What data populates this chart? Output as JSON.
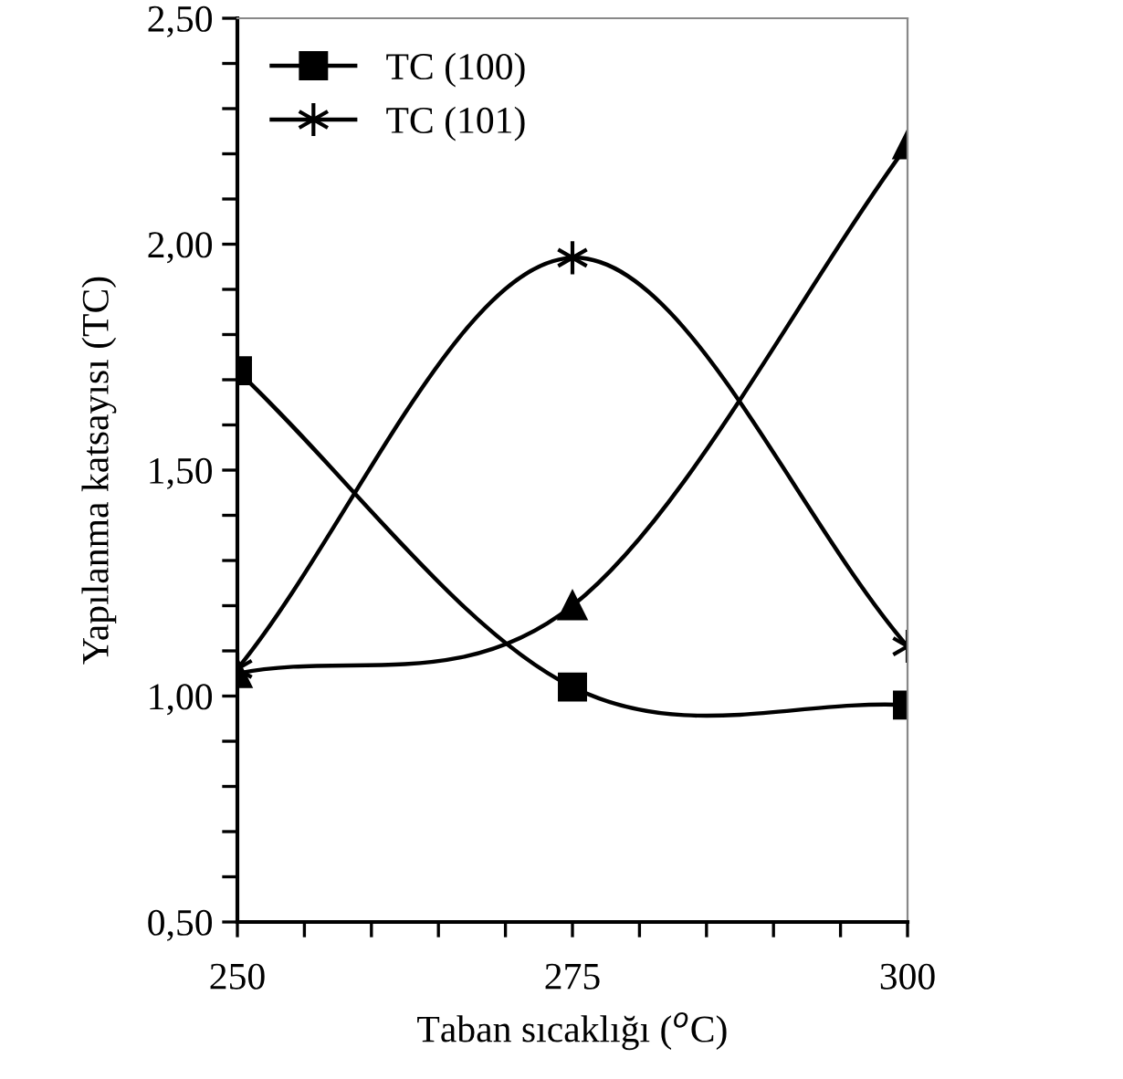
{
  "chart_data": {
    "type": "line",
    "xlabel": "Taban sıcaklığı ($^{o}$C)",
    "ylabel": "Yapılanma katsayısı (TC)",
    "x": [
      250,
      275,
      300
    ],
    "series": [
      {
        "name": "TC (100)",
        "color": "#000000",
        "marker": "square",
        "values": [
          1.72,
          1.02,
          0.98
        ]
      },
      {
        "name": "TC (101)",
        "color": "#000000",
        "marker": "cross",
        "values": [
          1.06,
          1.97,
          1.11
        ]
      },
      {
        "color": "#000000",
        "marker": "triangle",
        "values": [
          1.05,
          1.2,
          2.22
        ]
      }
    ],
    "xlim": [
      250,
      300
    ],
    "xticks": [
      250,
      {
        "value": 255,
        "label": null
      },
      {
        "value": 260,
        "label": null
      },
      {
        "value": 265,
        "label": null
      },
      {
        "value": 270,
        "label": null
      },
      275,
      {
        "value": 280,
        "label": null
      },
      {
        "value": 285,
        "label": null
      },
      {
        "value": 290,
        "label": null
      },
      {
        "value": 295,
        "label": null
      },
      300
    ],
    "ylim": [
      0.5,
      2.5
    ],
    "yticks": [
      {
        "value": 0.5,
        "label": "0,50"
      },
      {
        "value": 0.6,
        "label": null
      },
      {
        "value": 0.7,
        "label": null
      },
      {
        "value": 0.8,
        "label": null
      },
      {
        "value": 0.9,
        "label": null
      },
      {
        "value": 1.0,
        "label": "1,00"
      },
      {
        "value": 1.1,
        "label": null
      },
      {
        "value": 1.2,
        "label": null
      },
      {
        "value": 1.3,
        "label": null
      },
      {
        "value": 1.4,
        "label": null
      },
      {
        "value": 1.5,
        "label": "1,50"
      },
      {
        "value": 1.6,
        "label": null
      },
      {
        "value": 1.7,
        "label": null
      },
      {
        "value": 1.8,
        "label": null
      },
      {
        "value": 1.9,
        "label": null
      },
      {
        "value": 2.0,
        "label": "2,00"
      },
      {
        "value": 2.1,
        "label": null
      },
      {
        "value": 2.2,
        "label": null
      },
      {
        "value": 2.3,
        "label": null
      },
      {
        "value": 2.4,
        "label": null
      },
      {
        "value": 2.5,
        "label": "2,50"
      }
    ],
    "grid": false,
    "legend": "top left",
    "line_style": "solid"
  }
}
